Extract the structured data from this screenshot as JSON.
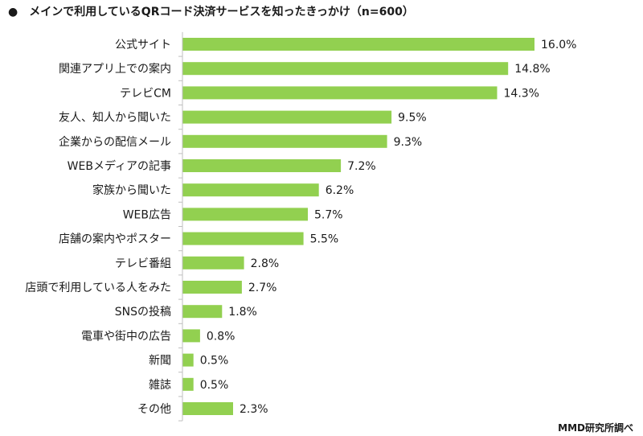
{
  "title": "●　メインで利用しているQRコード決済サービスを知ったきっかけ（n=600）",
  "credit": "MMD研究所調べ",
  "colors": {
    "bar": "#92d050",
    "axis": "#bfbfbf",
    "text": "#1a1a1a"
  },
  "chart_data": {
    "type": "bar",
    "orientation": "horizontal",
    "title": "メインで利用しているQRコード決済サービスを知ったきっかけ（n=600）",
    "categories": [
      "公式サイト",
      "関連アプリ上での案内",
      "テレビCM",
      "友人、知人から聞いた",
      "企業からの配信メール",
      "WEBメディアの記事",
      "家族から聞いた",
      "WEB広告",
      "店舗の案内やポスター",
      "テレビ番組",
      "店頭で利用している人をみた",
      "SNSの投稿",
      "電車や街中の広告",
      "新聞",
      "雑誌",
      "その他"
    ],
    "values": [
      16.0,
      14.8,
      14.3,
      9.5,
      9.3,
      7.2,
      6.2,
      5.7,
      5.5,
      2.8,
      2.7,
      1.8,
      0.8,
      0.5,
      0.5,
      2.3
    ],
    "value_labels": [
      "16.0%",
      "14.8%",
      "14.3%",
      "9.5%",
      "9.3%",
      "7.2%",
      "6.2%",
      "5.7%",
      "5.5%",
      "2.8%",
      "2.7%",
      "1.8%",
      "0.8%",
      "0.5%",
      "0.5%",
      "2.3%"
    ],
    "unit": "%",
    "xlim": [
      0,
      16.0
    ],
    "grid": false,
    "legend": "none"
  }
}
